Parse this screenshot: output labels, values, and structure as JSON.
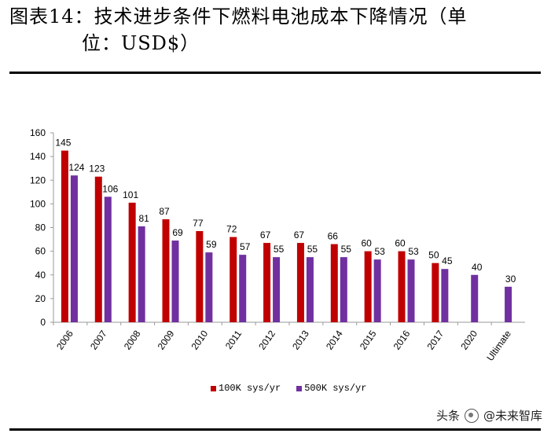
{
  "header": {
    "title_line1": "图表14：技术进步条件下燃料电池成本下降情况（单",
    "title_line2": "位：USD$）"
  },
  "watermark": {
    "source": "头条",
    "account": "@未来智库"
  },
  "colors": {
    "series_100k": "#C00000",
    "series_500k": "#7030A0"
  },
  "chart_data": {
    "type": "bar",
    "title": "",
    "xlabel": "",
    "ylabel": "",
    "ylim": [
      0,
      160
    ],
    "yticks": [
      0,
      20,
      40,
      60,
      80,
      100,
      120,
      140,
      160
    ],
    "grid": false,
    "legend_position": "bottom",
    "categories": [
      "2006",
      "2007",
      "2008",
      "2009",
      "2010",
      "2011",
      "2012",
      "2013",
      "2014",
      "2015",
      "2016",
      "2017",
      "2020",
      "Ultimate"
    ],
    "series": [
      {
        "name": "100K sys/yr",
        "values": [
          145,
          123,
          101,
          87,
          77,
          72,
          67,
          67,
          66,
          60,
          60,
          50,
          null,
          null
        ]
      },
      {
        "name": "500K sys/yr",
        "values": [
          124,
          106,
          81,
          69,
          59,
          57,
          55,
          55,
          55,
          53,
          53,
          45,
          40,
          30
        ]
      }
    ]
  }
}
